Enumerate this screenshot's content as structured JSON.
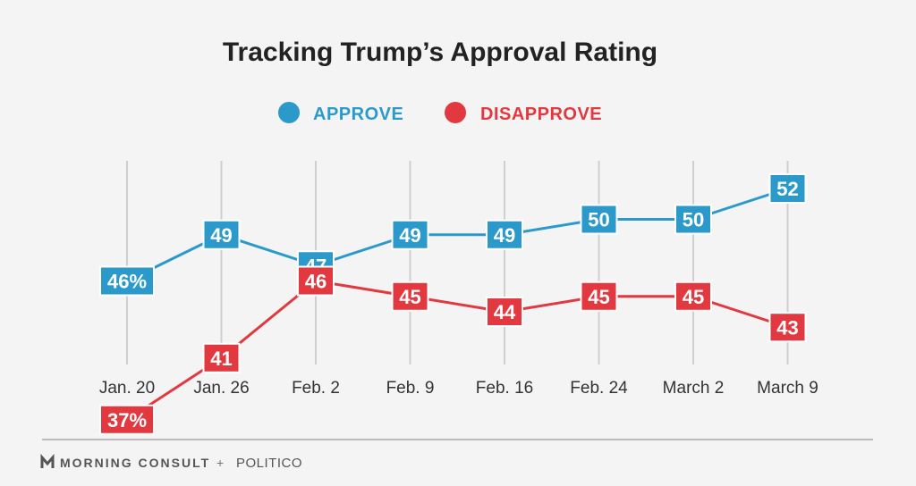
{
  "chart_data": {
    "type": "line",
    "title": "Tracking Trump’s Approval Rating",
    "categories": [
      "Jan. 20",
      "Jan. 26",
      "Feb. 2",
      "Feb. 9",
      "Feb. 16",
      "Feb. 24",
      "March 2",
      "March 9"
    ],
    "series": [
      {
        "name": "APPROVE",
        "color": "#2b9acb",
        "values": [
          46,
          49,
          47,
          49,
          49,
          50,
          50,
          52
        ],
        "labels": [
          "46%",
          "49",
          "47",
          "49",
          "49",
          "50",
          "50",
          "52"
        ]
      },
      {
        "name": "DISAPPROVE",
        "color": "#e1393f",
        "values": [
          37,
          41,
          46,
          45,
          44,
          45,
          45,
          43
        ],
        "labels": [
          "37%",
          "41",
          "46",
          "45",
          "44",
          "45",
          "45",
          "43"
        ]
      }
    ],
    "ylim": [
      35,
      53
    ],
    "grid": "vertical",
    "legend": "top-center",
    "xlabel": "",
    "ylabel": ""
  },
  "footer": {
    "brand": "MORNING CONSULT",
    "separator": "+",
    "publisher": "POLITICO",
    "logo_icon": "mc-logo-icon"
  }
}
